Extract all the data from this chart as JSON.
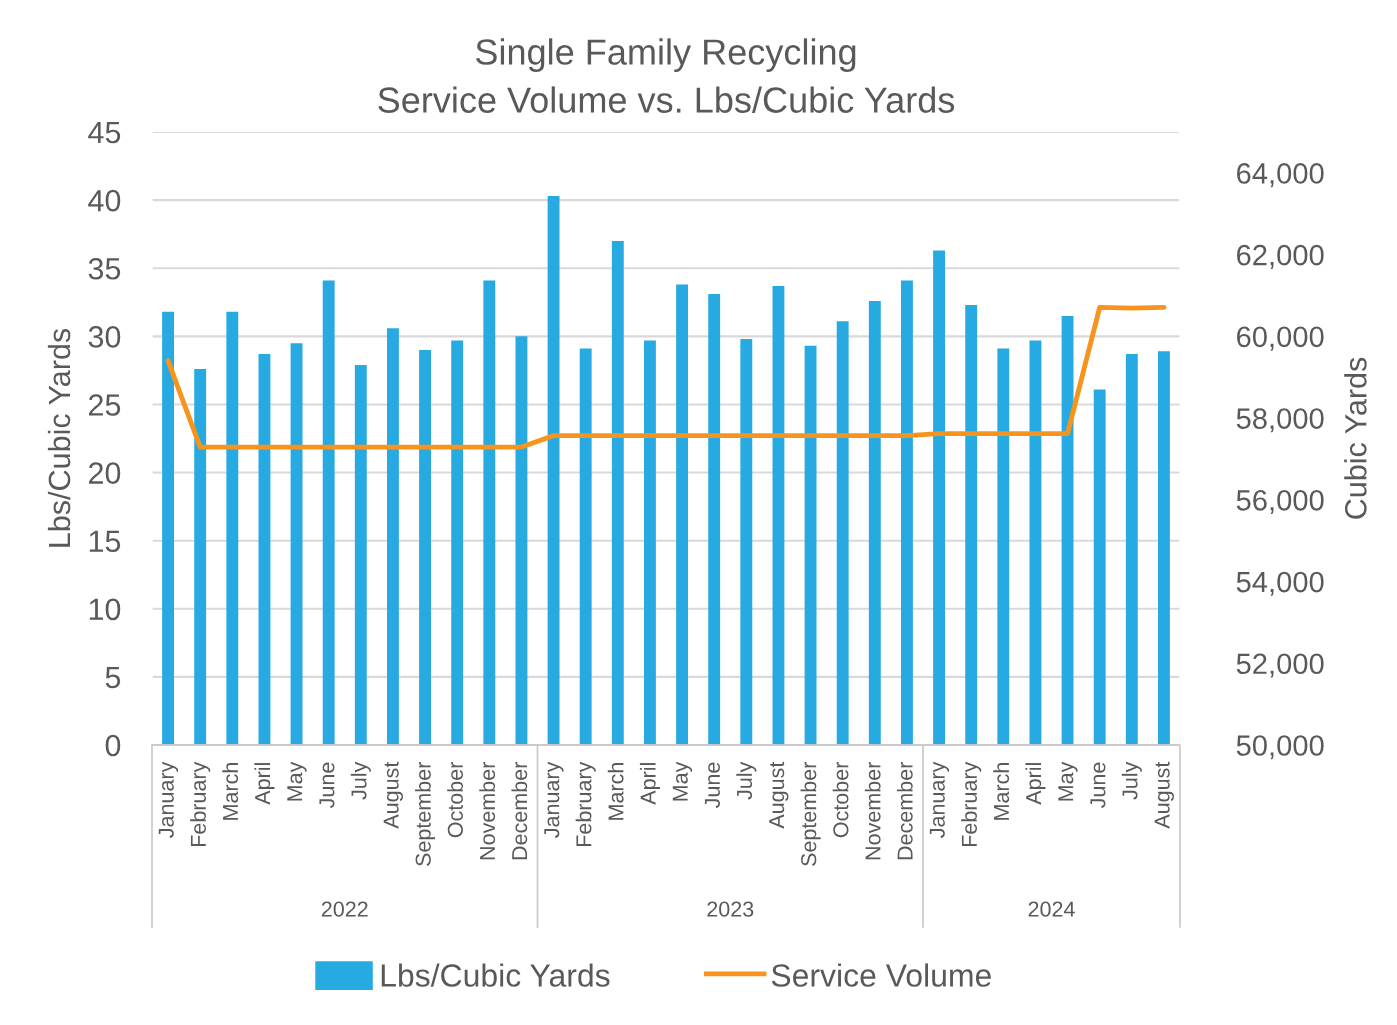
{
  "chart_data": {
    "type": "bar",
    "title": "Single Family Recycling\nService Volume vs. Lbs/Cubic Yards",
    "ylabel": "Lbs/Cubic Yards",
    "y2label": "Cubic Yards",
    "categories": [
      "January",
      "February",
      "March",
      "April",
      "May",
      "June",
      "July",
      "August",
      "September",
      "October",
      "November",
      "December",
      "January",
      "February",
      "March",
      "April",
      "May",
      "June",
      "July",
      "August",
      "September",
      "October",
      "November",
      "December",
      "January",
      "February",
      "March",
      "April",
      "May",
      "June",
      "July",
      "August"
    ],
    "annotations": [
      "2022",
      "2023",
      "2024"
    ],
    "series": [
      {
        "name": "Lbs/Cubic Yards",
        "color": "#27a9e1",
        "values": [
          31.8,
          27.6,
          31.8,
          28.7,
          29.5,
          34.1,
          27.9,
          30.6,
          29.0,
          29.7,
          34.1,
          30.0,
          40.3,
          29.1,
          37.0,
          29.7,
          33.8,
          33.1,
          29.8,
          33.7,
          29.3,
          31.1,
          32.6,
          34.1,
          36.3,
          32.3,
          29.1,
          29.7,
          31.5,
          26.1,
          28.7,
          28.9
        ]
      },
      {
        "name": "Service Volume",
        "type": "line",
        "axis": "y2",
        "color": "#f7941d",
        "values": [
          59400,
          57290,
          57290,
          57290,
          57290,
          57290,
          57290,
          57290,
          57290,
          57290,
          57290,
          57290,
          57570,
          57570,
          57570,
          57570,
          57570,
          57570,
          57570,
          57570,
          57570,
          57570,
          57570,
          57570,
          57620,
          57620,
          57620,
          57620,
          57620,
          60710,
          60690,
          60710
        ]
      }
    ],
    "ylim": [
      0,
      45
    ],
    "yticks": [
      0,
      5,
      10,
      15,
      20,
      25,
      30,
      35,
      40,
      45
    ],
    "y2lim": [
      50000,
      65000
    ],
    "y2ticks": [
      {
        "value": 50000,
        "label": "50,000"
      },
      {
        "value": 52000,
        "label": "52,000"
      },
      {
        "value": 54000,
        "label": "54,000"
      },
      {
        "value": 56000,
        "label": "56,000"
      },
      {
        "value": 58000,
        "label": "58,000"
      },
      {
        "value": 60000,
        "label": "60,000"
      },
      {
        "value": 62000,
        "label": "62,000"
      },
      {
        "value": 64000,
        "label": "64,000"
      }
    ],
    "grid": "y",
    "legend": "bottom"
  }
}
